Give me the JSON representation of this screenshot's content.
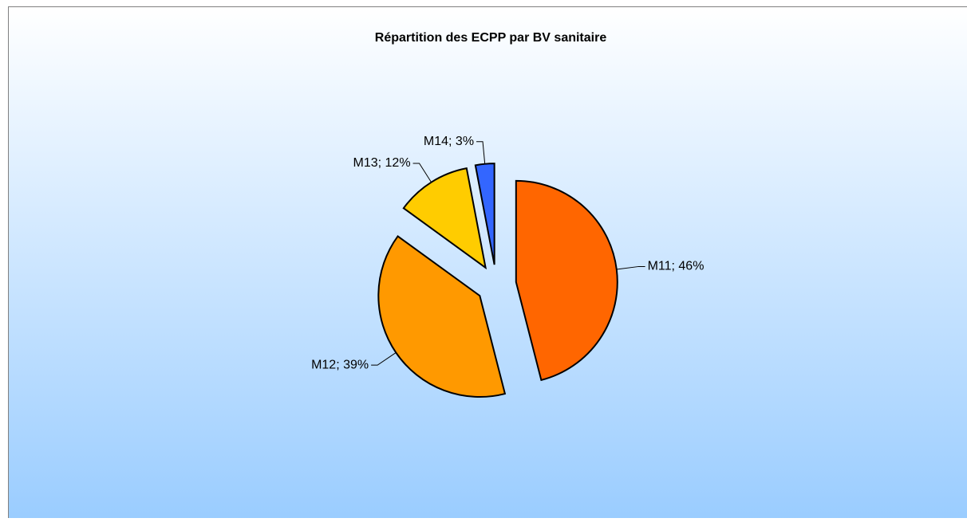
{
  "chart_data": {
    "type": "pie",
    "title": "Répartition des ECPP par BV sanitaire",
    "categories": [
      "M11",
      "M12",
      "M13",
      "M14"
    ],
    "values": [
      46,
      39,
      12,
      3
    ],
    "value_labels": [
      "M11; 46%",
      "M12; 39%",
      "M13; 12%",
      "M14; 3%"
    ],
    "colors": [
      "#ff6600",
      "#ff9900",
      "#ffcc00",
      "#3366ff"
    ]
  }
}
